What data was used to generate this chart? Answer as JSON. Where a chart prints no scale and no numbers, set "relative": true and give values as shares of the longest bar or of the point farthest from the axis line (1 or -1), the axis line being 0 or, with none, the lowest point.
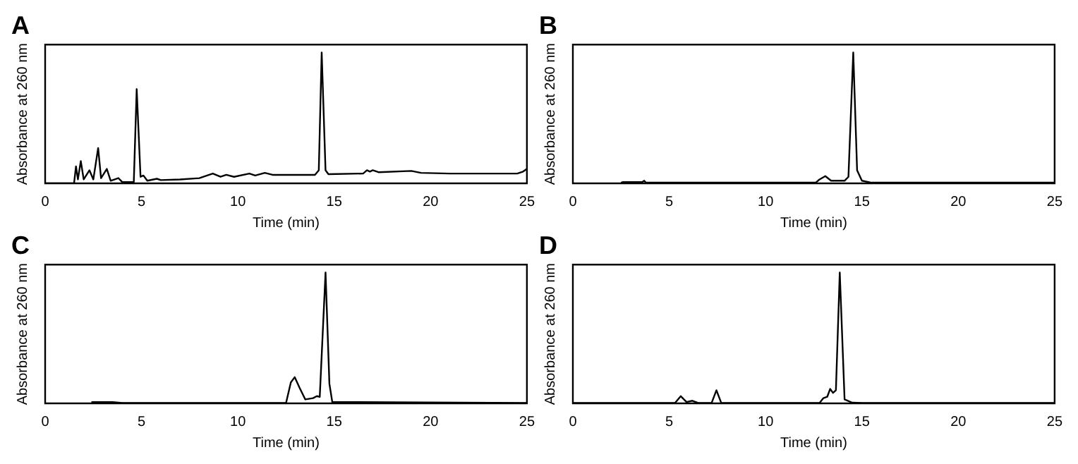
{
  "chart_data": [
    {
      "type": "line",
      "title": "A",
      "xlabel": "Time (min)",
      "ylabel": "Absorbance at 260 nm",
      "relative": true,
      "xlim": [
        0,
        25
      ],
      "xticks": [
        0,
        5,
        10,
        15,
        20,
        25
      ],
      "grid": false,
      "marker": "none",
      "series": [
        {
          "color": "#000000",
          "x": [
            0,
            1.5,
            1.6,
            1.7,
            1.85,
            2.0,
            2.3,
            2.5,
            2.75,
            2.9,
            3.2,
            3.4,
            3.8,
            4.0,
            4.6,
            4.75,
            4.95,
            5.1,
            5.3,
            5.8,
            6.0,
            7.0,
            8.0,
            8.7,
            9.1,
            9.4,
            9.8,
            10.6,
            10.9,
            11.4,
            11.8,
            14.0,
            14.2,
            14.35,
            14.55,
            14.7,
            16.5,
            16.7,
            16.85,
            17.0,
            17.3,
            19.0,
            19.5,
            21,
            24.5,
            24.8,
            25
          ],
          "values": [
            0,
            0,
            0.13,
            0.03,
            0.17,
            0.03,
            0.1,
            0.03,
            0.27,
            0.04,
            0.11,
            0.02,
            0.04,
            0.01,
            0.01,
            0.72,
            0.05,
            0.06,
            0.02,
            0.035,
            0.025,
            0.03,
            0.04,
            0.075,
            0.05,
            0.065,
            0.05,
            0.075,
            0.06,
            0.08,
            0.065,
            0.065,
            0.1,
            1,
            0.1,
            0.07,
            0.075,
            0.1,
            0.09,
            0.1,
            0.085,
            0.095,
            0.08,
            0.075,
            0.075,
            0.09,
            0.11
          ]
        }
      ]
    },
    {
      "type": "line",
      "title": "B",
      "xlabel": "Time (min)",
      "ylabel": "Absorbance at 260 nm",
      "relative": true,
      "xlim": [
        0,
        25
      ],
      "xticks": [
        0,
        5,
        10,
        15,
        20,
        25
      ],
      "grid": false,
      "marker": "none",
      "series": [
        {
          "color": "#000000",
          "x": [
            2.5,
            2.6,
            3.6,
            3.7,
            3.8,
            7.4,
            12.6,
            12.8,
            13.1,
            13.4,
            13.7,
            14.1,
            14.3,
            14.55,
            14.75,
            15.0,
            15.5,
            25
          ],
          "values": [
            0.005,
            0.01,
            0.01,
            0.02,
            0.005,
            0.005,
            0.005,
            0.03,
            0.055,
            0.02,
            0.02,
            0.02,
            0.05,
            1,
            0.1,
            0.02,
            0.005,
            0.005
          ]
        }
      ]
    },
    {
      "type": "line",
      "title": "C",
      "xlabel": "Time (min)",
      "ylabel": "Absorbance at 260 nm",
      "relative": true,
      "xlim": [
        0,
        25
      ],
      "xticks": [
        0,
        5,
        10,
        15,
        20,
        25
      ],
      "grid": false,
      "marker": "none",
      "series": [
        {
          "color": "#000000",
          "x": [
            2.4,
            3.5,
            4,
            12.5,
            12.75,
            12.95,
            13.2,
            13.5,
            13.9,
            14.1,
            14.25,
            14.55,
            14.75,
            14.9,
            15.1,
            25
          ],
          "values": [
            0.01,
            0.01,
            0.003,
            0.003,
            0.16,
            0.2,
            0.12,
            0.03,
            0.04,
            0.055,
            0.05,
            1,
            0.15,
            0.01,
            0.01,
            0.003
          ]
        }
      ]
    },
    {
      "type": "line",
      "title": "D",
      "xlabel": "Time (min)",
      "ylabel": "Absorbance at 260 nm",
      "relative": true,
      "xlim": [
        0,
        25
      ],
      "xticks": [
        0,
        5,
        10,
        15,
        20,
        25
      ],
      "grid": false,
      "marker": "none",
      "series": [
        {
          "color": "#000000",
          "x": [
            0,
            5.3,
            5.6,
            5.9,
            6.2,
            6.5,
            7.2,
            7.45,
            7.7,
            12.8,
            13.0,
            13.2,
            13.35,
            13.5,
            13.65,
            13.85,
            14.1,
            14.5,
            15,
            25
          ],
          "values": [
            0.003,
            0.003,
            0.055,
            0.01,
            0.02,
            0.003,
            0.003,
            0.1,
            0.003,
            0.003,
            0.04,
            0.05,
            0.11,
            0.08,
            0.1,
            1,
            0.03,
            0.005,
            0.003,
            0.003
          ]
        }
      ]
    }
  ]
}
